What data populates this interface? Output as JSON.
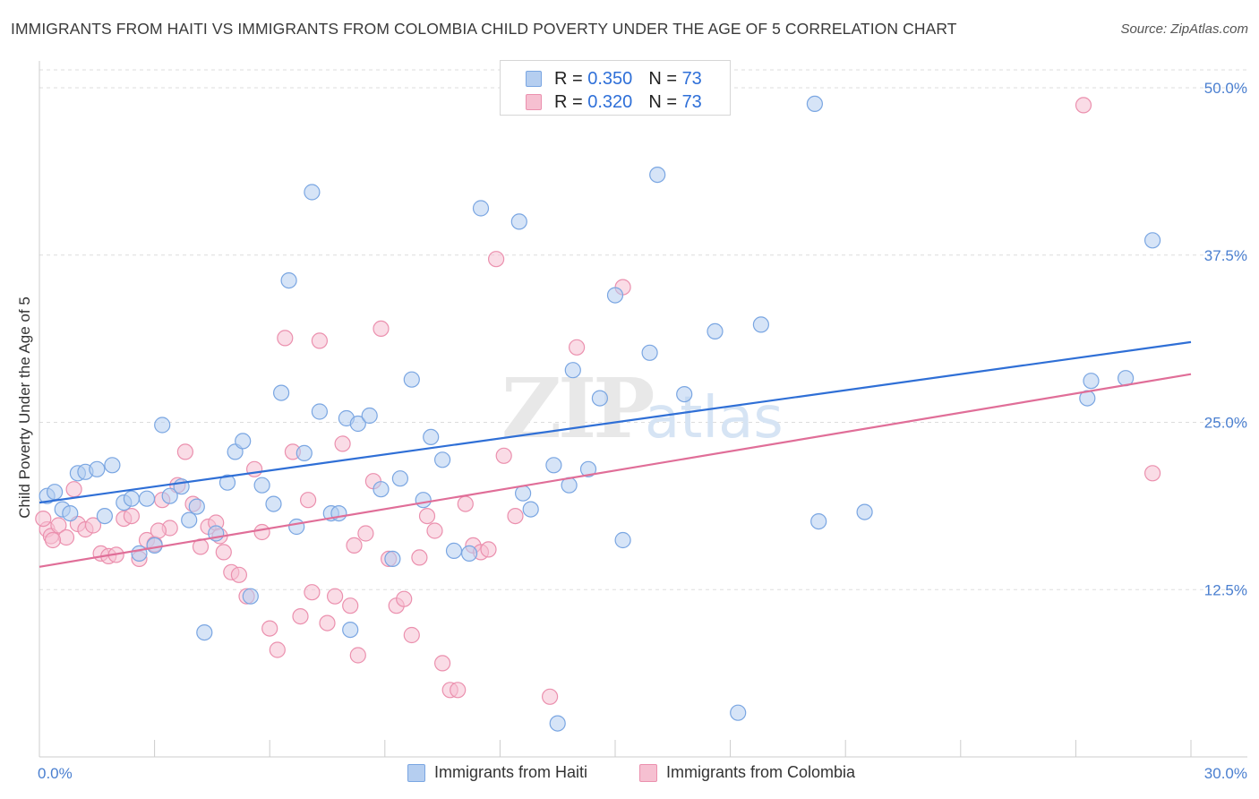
{
  "header": {
    "title": "IMMIGRANTS FROM HAITI VS IMMIGRANTS FROM COLOMBIA CHILD POVERTY UNDER THE AGE OF 5 CORRELATION CHART",
    "source": "Source: ZipAtlas.com"
  },
  "watermark": {
    "zip": "ZIP",
    "atlas": "atlas"
  },
  "legend": {
    "r_label": "R =",
    "n_label": "N =",
    "haiti": {
      "r": "0.350",
      "n": "73"
    },
    "colombia": {
      "r": "0.320",
      "n": "73"
    }
  },
  "colors": {
    "haiti_fill": "#b5cef0",
    "haiti_stroke": "#7aa6e2",
    "haiti_line": "#2f6fd6",
    "colombia_fill": "#f6c0d1",
    "colombia_stroke": "#eb90ae",
    "colombia_line": "#e06e98",
    "tick_label": "#4a7fd0",
    "grid": "#dddddd"
  },
  "chart_data": {
    "type": "scatter",
    "title": "IMMIGRANTS FROM HAITI VS IMMIGRANTS FROM COLOMBIA CHILD POVERTY UNDER THE AGE OF 5 CORRELATION CHART",
    "xlabel": "",
    "ylabel": "Child Poverty Under the Age of 5",
    "xlim": [
      0,
      30
    ],
    "ylim": [
      0,
      50
    ],
    "x_tick_labels": [
      "0.0%",
      "30.0%"
    ],
    "y_ticks": [
      12.5,
      25.0,
      37.5,
      50.0
    ],
    "y_tick_labels": [
      "12.5%",
      "25.0%",
      "37.5%",
      "50.0%"
    ],
    "grid": true,
    "legend_position": "top-center",
    "series": [
      {
        "name": "Immigrants from Haiti",
        "trend": {
          "x": [
            0,
            30
          ],
          "y": [
            19.0,
            31.0
          ]
        },
        "points": [
          [
            0.2,
            19.5
          ],
          [
            0.4,
            19.8
          ],
          [
            0.6,
            18.5
          ],
          [
            0.8,
            18.2
          ],
          [
            1.0,
            21.2
          ],
          [
            1.2,
            21.3
          ],
          [
            1.5,
            21.5
          ],
          [
            1.7,
            18.0
          ],
          [
            1.9,
            21.8
          ],
          [
            2.2,
            19.0
          ],
          [
            2.4,
            19.3
          ],
          [
            2.6,
            15.2
          ],
          [
            2.8,
            19.3
          ],
          [
            3.0,
            15.8
          ],
          [
            3.2,
            24.8
          ],
          [
            3.4,
            19.5
          ],
          [
            3.7,
            20.2
          ],
          [
            3.9,
            17.7
          ],
          [
            4.1,
            18.7
          ],
          [
            4.3,
            9.3
          ],
          [
            4.6,
            16.7
          ],
          [
            4.9,
            20.5
          ],
          [
            5.1,
            22.8
          ],
          [
            5.3,
            23.6
          ],
          [
            5.5,
            12.0
          ],
          [
            5.8,
            20.3
          ],
          [
            6.1,
            18.9
          ],
          [
            6.3,
            27.2
          ],
          [
            6.5,
            35.6
          ],
          [
            6.7,
            17.2
          ],
          [
            6.9,
            22.7
          ],
          [
            7.1,
            42.2
          ],
          [
            7.3,
            25.8
          ],
          [
            7.6,
            18.2
          ],
          [
            7.8,
            18.2
          ],
          [
            8.0,
            25.3
          ],
          [
            8.1,
            9.5
          ],
          [
            8.3,
            24.9
          ],
          [
            8.6,
            25.5
          ],
          [
            8.9,
            20.0
          ],
          [
            9.2,
            14.8
          ],
          [
            9.4,
            20.8
          ],
          [
            9.7,
            28.2
          ],
          [
            10.0,
            19.2
          ],
          [
            10.2,
            23.9
          ],
          [
            10.5,
            22.2
          ],
          [
            10.8,
            15.4
          ],
          [
            11.2,
            15.2
          ],
          [
            11.5,
            41.0
          ],
          [
            12.5,
            40.0
          ],
          [
            12.6,
            19.7
          ],
          [
            12.8,
            18.5
          ],
          [
            13.4,
            21.8
          ],
          [
            13.8,
            20.3
          ],
          [
            13.5,
            2.5
          ],
          [
            13.9,
            28.9
          ],
          [
            14.3,
            21.5
          ],
          [
            14.6,
            26.8
          ],
          [
            15.0,
            34.5
          ],
          [
            15.2,
            16.2
          ],
          [
            15.9,
            30.2
          ],
          [
            16.1,
            43.5
          ],
          [
            16.8,
            27.1
          ],
          [
            17.6,
            31.8
          ],
          [
            18.2,
            3.3
          ],
          [
            18.8,
            32.3
          ],
          [
            20.2,
            48.8
          ],
          [
            20.3,
            17.6
          ],
          [
            21.5,
            18.3
          ],
          [
            27.3,
            26.8
          ],
          [
            27.4,
            28.1
          ],
          [
            28.3,
            28.3
          ],
          [
            29.0,
            38.6
          ]
        ]
      },
      {
        "name": "Immigrants from Colombia",
        "trend": {
          "x": [
            0,
            30
          ],
          "y": [
            14.2,
            28.6
          ]
        },
        "points": [
          [
            0.2,
            17.0
          ],
          [
            0.3,
            16.5
          ],
          [
            0.5,
            17.3
          ],
          [
            0.7,
            16.4
          ],
          [
            0.9,
            20.0
          ],
          [
            1.0,
            17.4
          ],
          [
            1.2,
            17.0
          ],
          [
            1.4,
            17.3
          ],
          [
            1.6,
            15.2
          ],
          [
            1.8,
            15.0
          ],
          [
            2.0,
            15.1
          ],
          [
            2.2,
            17.8
          ],
          [
            2.4,
            18.0
          ],
          [
            2.6,
            14.8
          ],
          [
            2.8,
            16.2
          ],
          [
            3.0,
            15.9
          ],
          [
            3.2,
            19.2
          ],
          [
            3.4,
            17.1
          ],
          [
            3.6,
            20.3
          ],
          [
            3.8,
            22.8
          ],
          [
            4.0,
            18.9
          ],
          [
            4.2,
            15.7
          ],
          [
            4.4,
            17.2
          ],
          [
            4.6,
            17.5
          ],
          [
            4.8,
            15.3
          ],
          [
            5.0,
            13.8
          ],
          [
            5.2,
            13.6
          ],
          [
            5.4,
            12.0
          ],
          [
            5.6,
            21.5
          ],
          [
            5.8,
            16.8
          ],
          [
            6.0,
            9.6
          ],
          [
            6.2,
            8.0
          ],
          [
            6.4,
            31.3
          ],
          [
            6.6,
            22.8
          ],
          [
            6.8,
            10.5
          ],
          [
            7.0,
            19.2
          ],
          [
            7.1,
            12.3
          ],
          [
            7.3,
            31.1
          ],
          [
            7.5,
            10.0
          ],
          [
            7.7,
            12.0
          ],
          [
            7.9,
            23.4
          ],
          [
            8.1,
            11.3
          ],
          [
            8.3,
            7.6
          ],
          [
            8.5,
            16.7
          ],
          [
            8.7,
            20.6
          ],
          [
            8.9,
            32.0
          ],
          [
            9.1,
            14.8
          ],
          [
            9.3,
            11.3
          ],
          [
            9.5,
            11.8
          ],
          [
            9.7,
            9.1
          ],
          [
            9.9,
            14.9
          ],
          [
            10.1,
            18.0
          ],
          [
            10.3,
            16.9
          ],
          [
            10.5,
            7.0
          ],
          [
            10.7,
            5.0
          ],
          [
            10.9,
            5.0
          ],
          [
            11.1,
            18.9
          ],
          [
            11.3,
            15.8
          ],
          [
            11.5,
            15.3
          ],
          [
            11.7,
            15.5
          ],
          [
            11.9,
            37.2
          ],
          [
            12.1,
            22.5
          ],
          [
            12.4,
            18.0
          ],
          [
            13.3,
            4.5
          ],
          [
            14.0,
            30.6
          ],
          [
            15.2,
            35.1
          ],
          [
            27.2,
            48.7
          ],
          [
            29.0,
            21.2
          ],
          [
            0.1,
            17.8
          ],
          [
            0.35,
            16.2
          ],
          [
            3.1,
            16.9
          ],
          [
            4.7,
            16.5
          ],
          [
            8.2,
            15.8
          ]
        ]
      }
    ]
  },
  "bottom_legend": {
    "haiti_label": "Immigrants from Haiti",
    "colombia_label": "Immigrants from Colombia"
  }
}
